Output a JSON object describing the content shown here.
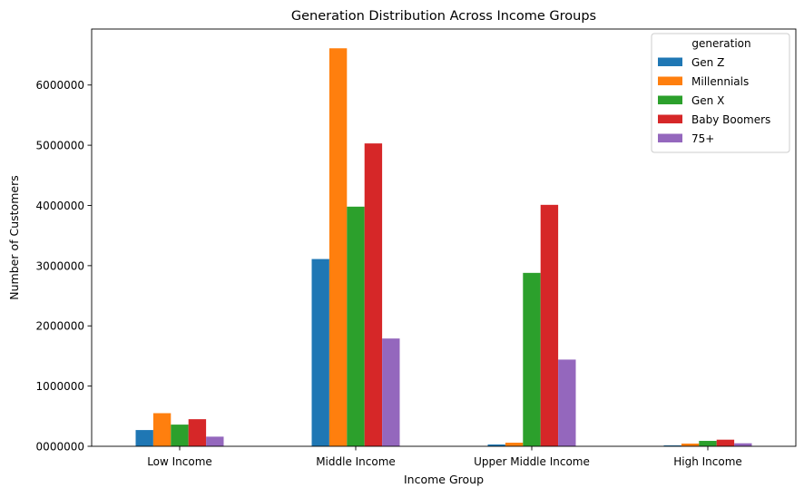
{
  "chart_data": {
    "type": "bar",
    "title": "Generation Distribution Across Income Groups",
    "xlabel": "Income Group",
    "ylabel": "Number of Customers",
    "categories": [
      "Low Income",
      "Middle Income",
      "Upper Middle Income",
      "High Income"
    ],
    "ylim": [
      0,
      6930000
    ],
    "yticks": [
      0,
      1000000,
      2000000,
      3000000,
      4000000,
      5000000,
      6000000
    ],
    "ytick_labels": [
      "0000000",
      "1000000",
      "2000000",
      "3000000",
      "4000000",
      "5000000",
      "6000000"
    ],
    "grid": false,
    "legend": {
      "title": "generation",
      "placement": "top-right"
    },
    "series": [
      {
        "name": "Gen Z",
        "color": "#1f77b4",
        "values": [
          270000,
          3110000,
          30000,
          15000
        ]
      },
      {
        "name": "Millennials",
        "color": "#ff7f0e",
        "values": [
          550000,
          6610000,
          60000,
          45000
        ]
      },
      {
        "name": "Gen X",
        "color": "#2ca02c",
        "values": [
          360000,
          3980000,
          2880000,
          90000
        ]
      },
      {
        "name": "Baby Boomers",
        "color": "#d62728",
        "values": [
          450000,
          5030000,
          4010000,
          110000
        ]
      },
      {
        "name": "75+",
        "color": "#9467bd",
        "values": [
          160000,
          1790000,
          1440000,
          50000
        ]
      }
    ]
  }
}
